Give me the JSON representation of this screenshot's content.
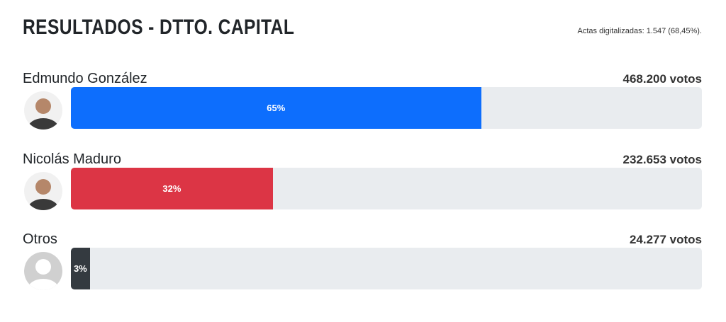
{
  "header": {
    "title": "RESULTADOS - DTTO. CAPITAL",
    "subtitle": "Actas digitalizadas: 1.547 (68,45%)."
  },
  "candidates": [
    {
      "name": "Edmundo González",
      "votes": "468.200 votos",
      "percent": 65,
      "percent_label": "65%",
      "color": "#0d6efd"
    },
    {
      "name": "Nicolás Maduro",
      "votes": "232.653 votos",
      "percent": 32,
      "percent_label": "32%",
      "color": "#dc3545"
    },
    {
      "name": "Otros",
      "votes": "24.277 votos",
      "percent": 3,
      "percent_label": "3%",
      "color": "#343a40"
    }
  ]
}
